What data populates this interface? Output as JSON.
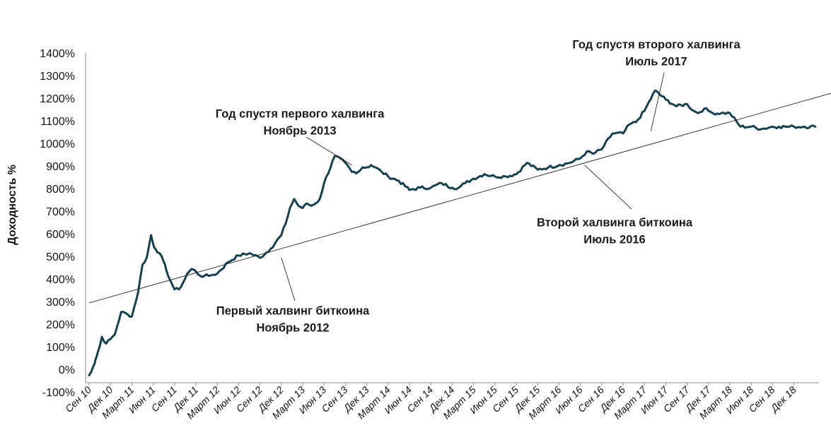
{
  "chart_data": {
    "type": "line",
    "ylabel": "Доходность %",
    "xlabel": "",
    "title": "",
    "ylim": [
      -100,
      1400
    ],
    "y_ticks": [
      "-100%",
      "0%",
      "100%",
      "200%",
      "300%",
      "400%",
      "500%",
      "600%",
      "700%",
      "800%",
      "900%",
      "1000%",
      "1100%",
      "1200%",
      "1300%",
      "1400%"
    ],
    "y_tick_values": [
      -100,
      0,
      100,
      200,
      300,
      400,
      500,
      600,
      700,
      800,
      900,
      1000,
      1100,
      1200,
      1300,
      1400
    ],
    "x_ticks": [
      "Сен 10",
      "Дек 10",
      "Март 11",
      "Июн 11",
      "Сен 11",
      "Дек 11",
      "Март 12",
      "Июн 12",
      "Сен 12",
      "Дек 12",
      "Март 13",
      "Июн 13",
      "Сен 13",
      "Дек 13",
      "Март 14",
      "Июн 14",
      "Сен 14",
      "Дек 14",
      "Март 15",
      "Июн 15",
      "Сен 15",
      "Дек 15",
      "Март 16",
      "Июн 16",
      "Сен 16",
      "Дек 16",
      "Март 17",
      "Июн 17",
      "Сен 17",
      "Дек 17",
      "Март 18",
      "Июн 18",
      "Сен 18",
      "Дек 18"
    ],
    "grid": false,
    "series": [
      {
        "color": "#14404f",
        "x": [
          0,
          0.1,
          0.2,
          0.3,
          0.4,
          0.5,
          0.6,
          0.8,
          1.0,
          1.2,
          1.5,
          1.8,
          2.0,
          2.3,
          2.5,
          2.7,
          2.9,
          3.0,
          3.1,
          3.3,
          3.5,
          3.6,
          3.8,
          4.0,
          4.2,
          4.4,
          4.6,
          4.8,
          5.0,
          5.2,
          5.4,
          5.6,
          5.8,
          6.0,
          6.5,
          7.0,
          7.5,
          8.0,
          8.5,
          9.0,
          9.2,
          9.4,
          9.6,
          9.8,
          10.0,
          10.2,
          10.4,
          10.6,
          10.8,
          11.0,
          11.5,
          12.0,
          12.3,
          12.6,
          12.8,
          13.0,
          13.2,
          13.4,
          13.7,
          14.0,
          14.5,
          15.0,
          15.5,
          16.0,
          16.5,
          17.0,
          17.3,
          17.6,
          18.0,
          18.5,
          19.0,
          19.5,
          20.0,
          20.5,
          21.0,
          21.5,
          22.0,
          22.5,
          23.0,
          23.3,
          23.6,
          24.0,
          24.5,
          25.0,
          25.3,
          25.6,
          26.0,
          26.5,
          27.0,
          27.5,
          28.0,
          28.3,
          28.5,
          28.8,
          29.0,
          29.2,
          29.6,
          30.0,
          30.5,
          31.0,
          31.5,
          32.0,
          32.3,
          32.6,
          33.0,
          33.5,
          34.0
        ],
        "y": [
          -20,
          -5,
          20,
          50,
          80,
          110,
          150,
          120,
          140,
          160,
          260,
          250,
          240,
          350,
          470,
          500,
          600,
          560,
          540,
          520,
          480,
          450,
          400,
          360,
          360,
          390,
          430,
          450,
          440,
          420,
          420,
          420,
          425,
          430,
          480,
          510,
          520,
          500,
          540,
          600,
          650,
          720,
          760,
          730,
          720,
          740,
          730,
          740,
          760,
          830,
          950,
          920,
          880,
          880,
          900,
          900,
          910,
          900,
          880,
          860,
          840,
          800,
          810,
          810,
          830,
          810,
          810,
          830,
          850,
          870,
          860,
          860,
          870,
          920,
          890,
          900,
          910,
          920,
          940,
          970,
          960,
          980,
          1050,
          1050,
          1090,
          1100,
          1150,
          1240,
          1200,
          1170,
          1180,
          1150,
          1140,
          1160,
          1150,
          1140,
          1140,
          1140,
          1080,
          1080,
          1070,
          1080,
          1080,
          1080,
          1080,
          1080,
          1080
        ]
      }
    ],
    "trendline": {
      "x": [
        0,
        35
      ],
      "y": [
        300,
        1235
      ]
    },
    "annotations": [
      {
        "lines": [
          "Первый халвинг биткоина",
          "Ноябрь 2012"
        ],
        "point_x": 9.0,
        "point_y": 500
      },
      {
        "lines": [
          "Год спустя первого халвинга",
          "Ноябрь 2013"
        ],
        "point_x": 12.3,
        "point_y": 910
      },
      {
        "lines": [
          "Второй халвинга биткоина",
          "Июль 2016"
        ],
        "point_x": 23.2,
        "point_y": 910
      },
      {
        "lines": [
          "Год спустя второго халвинга",
          "Июль 2017"
        ],
        "point_x": 26.3,
        "point_y": 1060
      }
    ]
  }
}
